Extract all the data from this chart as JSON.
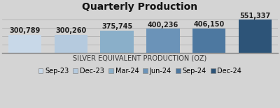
{
  "title": "Quarterly Production",
  "xlabel": "SILVER EQUIVALENT PRODUCTION (OZ)",
  "categories": [
    "Sep-23",
    "Dec-23",
    "Mar-24",
    "Jun-24",
    "Sep-24",
    "Dec-24"
  ],
  "values": [
    300789,
    300260,
    375745,
    400236,
    406150,
    551337
  ],
  "labels": [
    "300,789",
    "300,260",
    "375,745",
    "400,236",
    "406,150",
    "551,337"
  ],
  "bar_colors": [
    "#c8d8e8",
    "#b5cade",
    "#8aafc9",
    "#6b93b8",
    "#4d78a0",
    "#2d5478"
  ],
  "background_color": "#d4d4d4",
  "title_fontsize": 10,
  "label_fontsize": 7,
  "xlabel_fontsize": 7,
  "legend_fontsize": 7
}
